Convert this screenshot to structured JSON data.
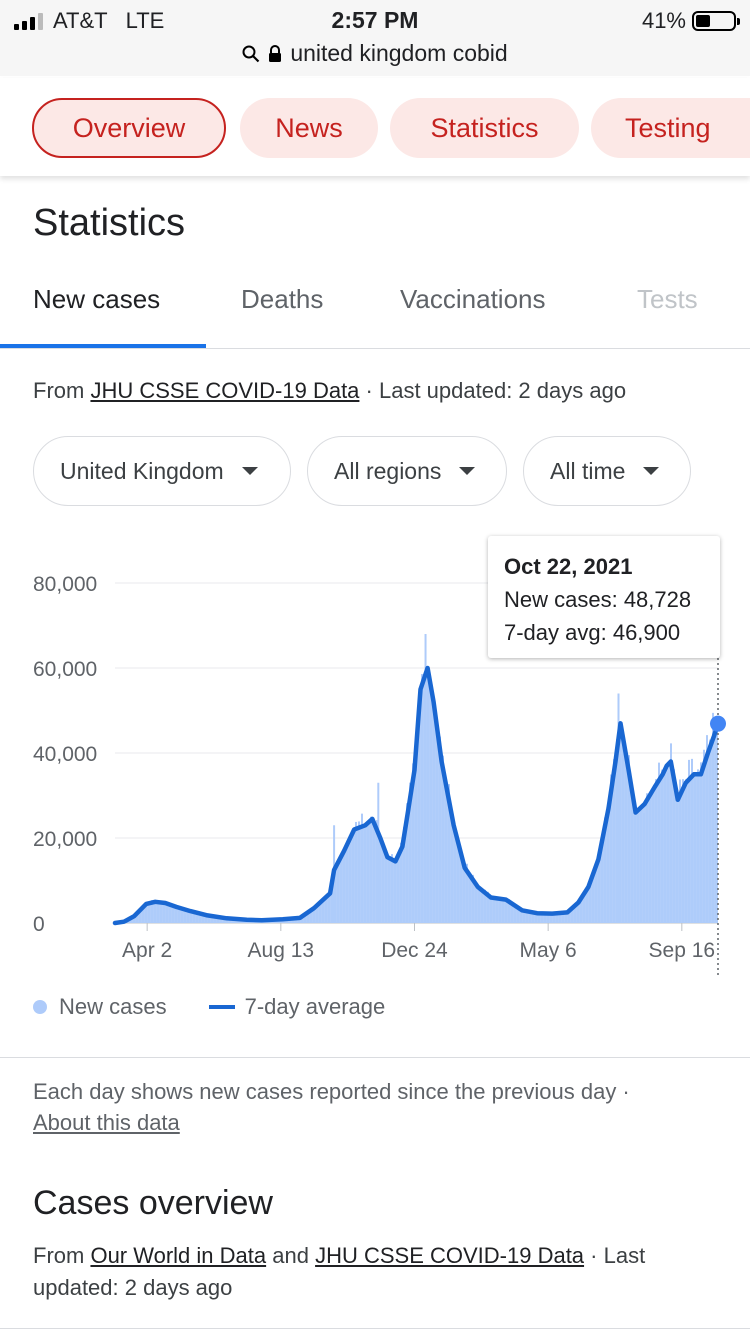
{
  "status_bar": {
    "carrier": "AT&T",
    "network": "LTE",
    "time": "2:57 PM",
    "battery": "41%",
    "battery_level": 0.41
  },
  "url_bar": {
    "text": "united kingdom cobid",
    "icons": [
      "search-icon",
      "lock-icon"
    ]
  },
  "top_chips": [
    "Overview",
    "News",
    "Statistics",
    "Testing"
  ],
  "active_chip": "Overview",
  "section_title": "Statistics",
  "tabs": [
    "New cases",
    "Deaths",
    "Vaccinations",
    "Tests"
  ],
  "active_tab": "New cases",
  "source": {
    "prefix": "From",
    "link": "JHU CSSE COVID-19 Data",
    "suffix": "· Last updated: 2 days ago"
  },
  "dropdowns": [
    "United Kingdom",
    "All regions",
    "All time"
  ],
  "tooltip": {
    "date": "Oct 22, 2021",
    "new_cases": "New cases: 48,728",
    "avg": "7-day avg: 46,900"
  },
  "legend": {
    "new_cases": "New cases",
    "avg": "7-day average"
  },
  "note": {
    "text": "Each day shows new cases reported since the previous day ·",
    "link": "About this data"
  },
  "cases_overview": {
    "title": "Cases overview",
    "prefix": "From",
    "link1": "Our World in Data",
    "mid": "and",
    "link2": "JHU CSSE COVID-19 Data",
    "suffix": "· Last updated: 2 days ago"
  },
  "colors": {
    "accent": "#1a73e8",
    "line": "#1967d2",
    "area": "#aecbfa",
    "chip_bg": "#fce8e6",
    "chip_text": "#c5221f"
  },
  "chart_data": {
    "type": "area",
    "title": "",
    "xlabel": "",
    "ylabel": "",
    "ylim": [
      0,
      80000
    ],
    "yticks": [
      0,
      20000,
      40000,
      60000,
      80000
    ],
    "ytick_labels": [
      "0",
      "20,000",
      "40,000",
      "60,000",
      "80,000"
    ],
    "xtick_labels": [
      "Apr 2",
      "Aug 13",
      "Dec 24",
      "May 6",
      "Sep 16"
    ],
    "xtick_dates": [
      "2020-04-02",
      "2020-08-13",
      "2020-12-24",
      "2021-05-06",
      "2021-09-16"
    ],
    "grid": true,
    "legend_position": "bottom-left",
    "highlight": {
      "date": "2021-10-22",
      "new_cases": 48728,
      "avg": 46900
    },
    "series": [
      {
        "name": "7-day average",
        "points": [
          [
            "2020-03-01",
            0
          ],
          [
            "2020-03-10",
            300
          ],
          [
            "2020-03-20",
            1600
          ],
          [
            "2020-04-01",
            4500
          ],
          [
            "2020-04-10",
            5000
          ],
          [
            "2020-04-20",
            4700
          ],
          [
            "2020-05-01",
            3800
          ],
          [
            "2020-05-15",
            2800
          ],
          [
            "2020-06-01",
            1800
          ],
          [
            "2020-06-20",
            1100
          ],
          [
            "2020-07-10",
            750
          ],
          [
            "2020-07-25",
            650
          ],
          [
            "2020-08-15",
            900
          ],
          [
            "2020-09-01",
            1200
          ],
          [
            "2020-09-15",
            3500
          ],
          [
            "2020-10-01",
            7000
          ],
          [
            "2020-10-05",
            12500
          ],
          [
            "2020-10-15",
            17000
          ],
          [
            "2020-10-25",
            22000
          ],
          [
            "2020-11-05",
            23000
          ],
          [
            "2020-11-12",
            24500
          ],
          [
            "2020-11-20",
            20000
          ],
          [
            "2020-11-27",
            15500
          ],
          [
            "2020-12-05",
            14500
          ],
          [
            "2020-12-12",
            18000
          ],
          [
            "2020-12-18",
            27000
          ],
          [
            "2020-12-24",
            36000
          ],
          [
            "2020-12-30",
            55000
          ],
          [
            "2021-01-06",
            60000
          ],
          [
            "2021-01-12",
            52000
          ],
          [
            "2021-01-20",
            38000
          ],
          [
            "2021-02-01",
            23000
          ],
          [
            "2021-02-12",
            13000
          ],
          [
            "2021-02-25",
            8500
          ],
          [
            "2021-03-10",
            6000
          ],
          [
            "2021-03-25",
            5500
          ],
          [
            "2021-04-10",
            3000
          ],
          [
            "2021-04-25",
            2300
          ],
          [
            "2021-05-10",
            2200
          ],
          [
            "2021-05-25",
            2500
          ],
          [
            "2021-06-05",
            4800
          ],
          [
            "2021-06-15",
            8500
          ],
          [
            "2021-06-25",
            15000
          ],
          [
            "2021-07-05",
            27000
          ],
          [
            "2021-07-12",
            38000
          ],
          [
            "2021-07-17",
            47000
          ],
          [
            "2021-07-25",
            36000
          ],
          [
            "2021-08-01",
            26000
          ],
          [
            "2021-08-10",
            28000
          ],
          [
            "2021-08-20",
            32000
          ],
          [
            "2021-08-28",
            35000
          ],
          [
            "2021-09-01",
            37000
          ],
          [
            "2021-09-05",
            38000
          ],
          [
            "2021-09-12",
            29000
          ],
          [
            "2021-09-20",
            33000
          ],
          [
            "2021-09-28",
            35000
          ],
          [
            "2021-10-05",
            35000
          ],
          [
            "2021-10-12",
            40000
          ],
          [
            "2021-10-18",
            44000
          ],
          [
            "2021-10-22",
            46900
          ]
        ]
      },
      {
        "name": "New cases",
        "type": "bar",
        "note": "daily values shown as light blue bars around the 7-day average, with peaks near 68,000 in early Jan 2021 and 54,000 in mid Jul 2021"
      }
    ]
  }
}
